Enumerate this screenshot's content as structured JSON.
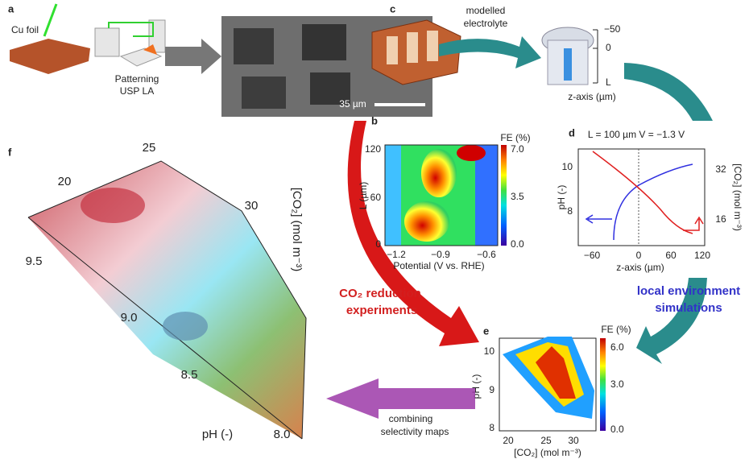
{
  "panel_a": {
    "letter": "a",
    "material": "Cu foil",
    "process": [
      "Patterning",
      "USP LA"
    ]
  },
  "panel_c": {
    "letter": "c",
    "scale_bar": "35 µm",
    "arrow_label": [
      "modelled",
      "electrolyte"
    ],
    "zaxis_ticks": [
      "−50",
      "0",
      "L"
    ],
    "zaxis_label": "z-axis (µm)"
  },
  "panel_b": {
    "letter": "b",
    "colorbar_title": "FE (%)",
    "colorbar_ticks": [
      "7.0",
      "3.5",
      "0.0"
    ],
    "yticks": [
      120,
      60,
      0
    ],
    "ylabel": "L (µm)",
    "xticks": [
      "−1.2",
      "−0.9",
      "−0.6"
    ],
    "xlabel": "Potential (V vs. RHE)"
  },
  "panel_d": {
    "letter": "d",
    "title": "L = 100 µm V = −1.3 V",
    "yticks": [
      10,
      8
    ],
    "ylabel": "pH (-)",
    "y2ticks": [
      32,
      16
    ],
    "y2label": "[CO₂] (mol m⁻³)",
    "xticks": [
      "−60",
      "0",
      "60",
      "120"
    ],
    "xlabel": "z-axis (µm)"
  },
  "panel_e": {
    "letter": "e",
    "colorbar_title": "FE (%)",
    "colorbar_ticks": [
      "6.0",
      "3.0",
      "0.0"
    ],
    "yticks": [
      10,
      9,
      8
    ],
    "ylabel": "pH (-)",
    "xticks": [
      20,
      25,
      30
    ],
    "xlabel": "[CO₂] (mol m⁻³)"
  },
  "panel_f": {
    "letter": "f",
    "co2_ticks": [
      25,
      20,
      30
    ],
    "co2_label": "[CO₂] (mol m⁻³)",
    "ph_ticks": [
      "9.5",
      "9.0",
      "8.5",
      "8.0"
    ],
    "ph_label": "pH (-)"
  },
  "arrows": {
    "experiments": [
      "CO₂ reduction",
      "experiments"
    ],
    "simulations": [
      "local environment",
      "simulations"
    ],
    "combining": [
      "combining",
      "selectivity maps"
    ]
  }
}
